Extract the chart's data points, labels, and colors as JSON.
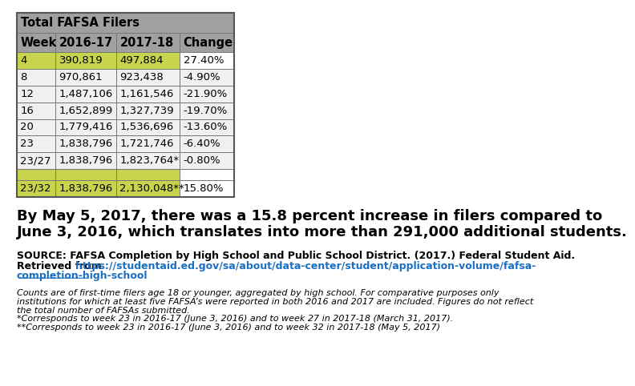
{
  "title_row": "Total FAFSA Filers",
  "headers": [
    "Week",
    "2016-17",
    "2017-18",
    "Change"
  ],
  "rows": [
    [
      "4",
      "390,819",
      "497,884",
      "27.40%"
    ],
    [
      "8",
      "970,861",
      "923,438",
      "-4.90%"
    ],
    [
      "12",
      "1,487,106",
      "1,161,546",
      "-21.90%"
    ],
    [
      "16",
      "1,652,899",
      "1,327,739",
      "-19.70%"
    ],
    [
      "20",
      "1,779,416",
      "1,536,696",
      "-13.60%"
    ],
    [
      "23",
      "1,838,796",
      "1,721,746",
      "-6.40%"
    ],
    [
      "23/27",
      "1,838,796",
      "1,823,764*",
      "-0.80%"
    ],
    [
      "23/32",
      "1,838,796",
      "2,130,048**",
      "15.80%"
    ]
  ],
  "highlight_color": "#c8d44e",
  "white_color": "#ffffff",
  "gray_bg": "#a0a0a0",
  "light_row_bg": "#f0f0f0",
  "main_text_line1": "By May 5, 2017, there was a 15.8 percent increase in filers compared to",
  "main_text_line2": "June 3, 2016, which translates into more than 291,000 additional students.",
  "source_line1": "SOURCE: FAFSA Completion by High School and Public School District. (2017.) Federal Student Aid.",
  "source_line2_prefix": "Retrieved from ",
  "source_url_line1": "https://studentaid.ed.gov/sa/about/data-center/student/application-volume/fafsa-",
  "source_url_line2": "completion-high-school",
  "footnote_lines": [
    "Counts are of first-time filers age 18 or younger, aggregated by high school. For comparative purposes only",
    "institutions for which at least five FAFSA’s were reported in both 2016 and 2017 are included. Figures do not reflect",
    "the total number of FAFSAs submitted.",
    "*Corresponds to week 23 in 2016-17 (June 3, 2016) and to week 27 in 2017-18 (March 31, 2017).",
    "**Corresponds to week 23 in 2016-17 (June 3, 2016) and to week 32 in 2017-18 (May 5, 2017)"
  ]
}
